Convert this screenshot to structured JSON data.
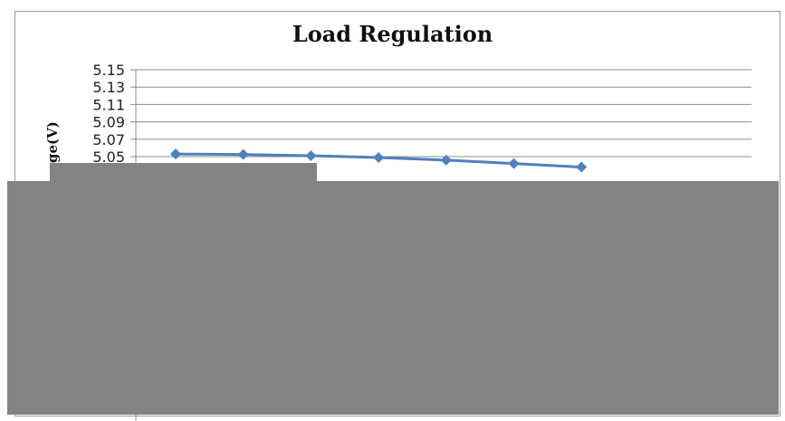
{
  "chart_data": {
    "type": "line",
    "title": "Load Regulation",
    "xlabel": "",
    "ylabel": "ge(V)",
    "ylim": [
      5.03,
      5.15
    ],
    "yticks": [
      "5.15",
      "5.13",
      "5.11",
      "5.09",
      "5.07",
      "5.05"
    ],
    "grid": true,
    "series": [
      {
        "color": "#4f81bd",
        "marker": "diamond",
        "values": [
          5.053,
          5.0525,
          5.051,
          5.049,
          5.046,
          5.042,
          5.038
        ]
      }
    ]
  }
}
